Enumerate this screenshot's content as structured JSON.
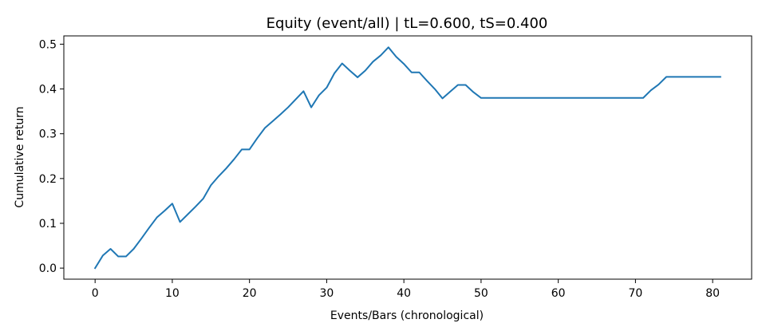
{
  "chart_data": {
    "type": "line",
    "title": "Equity (event/all) | tL=0.600, tS=0.400",
    "xlabel": "Events/Bars (chronological)",
    "ylabel": "Cumulative return",
    "xlim": [
      -4.05,
      85.05
    ],
    "ylim": [
      -0.0247,
      0.5185
    ],
    "xticks": [
      0,
      10,
      20,
      30,
      40,
      50,
      60,
      70,
      80
    ],
    "yticks": [
      0.0,
      0.1,
      0.2,
      0.3,
      0.4,
      0.5
    ],
    "ytick_labels": [
      "0.0",
      "0.1",
      "0.2",
      "0.3",
      "0.4",
      "0.5"
    ],
    "grid": false,
    "colors": {
      "series": "#1f77b4",
      "axes": "#000000",
      "background": "#ffffff"
    },
    "series": [
      {
        "x": [
          0,
          1,
          2,
          3,
          4,
          5,
          6,
          7,
          8,
          9,
          10,
          11,
          12,
          13,
          14,
          15,
          16,
          17,
          18,
          19,
          20,
          21,
          22,
          23,
          24,
          25,
          26,
          27,
          28,
          29,
          30,
          31,
          32,
          33,
          34,
          35,
          36,
          37,
          38,
          39,
          40,
          41,
          42,
          43,
          44,
          45,
          46,
          47,
          48,
          49,
          50,
          51,
          52,
          53,
          54,
          55,
          56,
          57,
          58,
          59,
          60,
          61,
          62,
          63,
          64,
          65,
          66,
          67,
          68,
          69,
          70,
          71,
          72,
          73,
          74,
          75,
          76,
          77,
          78,
          79,
          80,
          81
        ],
        "values": [
          0.0,
          0.028,
          0.043,
          0.026,
          0.026,
          0.043,
          0.066,
          0.09,
          0.113,
          0.128,
          0.144,
          0.103,
          0.12,
          0.137,
          0.155,
          0.185,
          0.205,
          0.223,
          0.243,
          0.265,
          0.265,
          0.29,
          0.313,
          0.328,
          0.343,
          0.359,
          0.377,
          0.395,
          0.359,
          0.386,
          0.403,
          0.435,
          0.457,
          0.441,
          0.426,
          0.441,
          0.461,
          0.475,
          0.493,
          0.472,
          0.456,
          0.437,
          0.437,
          0.418,
          0.4,
          0.379,
          0.394,
          0.409,
          0.409,
          0.393,
          0.38,
          0.38,
          0.38,
          0.38,
          0.38,
          0.38,
          0.38,
          0.38,
          0.38,
          0.38,
          0.38,
          0.38,
          0.38,
          0.38,
          0.38,
          0.38,
          0.38,
          0.38,
          0.38,
          0.38,
          0.38,
          0.38,
          0.397,
          0.41,
          0.427,
          0.427,
          0.427,
          0.427,
          0.427,
          0.427,
          0.427,
          0.427
        ]
      }
    ]
  }
}
